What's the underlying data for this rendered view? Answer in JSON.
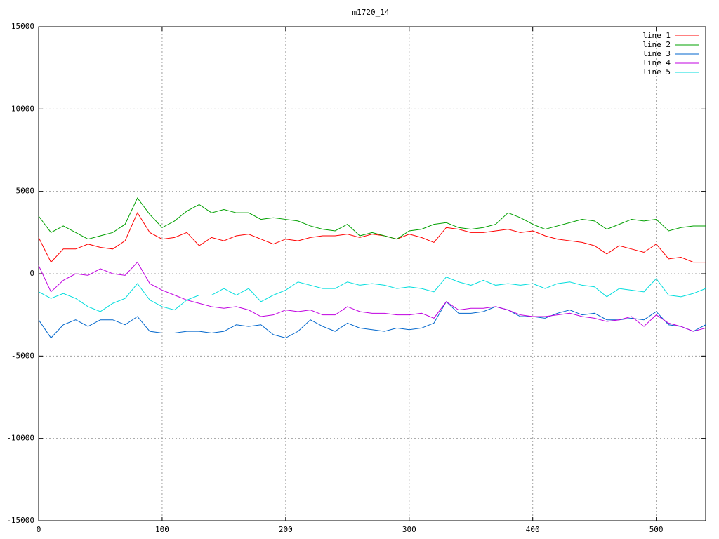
{
  "chart_data": {
    "type": "line",
    "title": "m1720_14",
    "x": [
      0,
      10,
      20,
      30,
      40,
      50,
      60,
      70,
      80,
      90,
      100,
      110,
      120,
      130,
      140,
      150,
      160,
      170,
      180,
      190,
      200,
      210,
      220,
      230,
      240,
      250,
      260,
      270,
      280,
      290,
      300,
      310,
      320,
      330,
      340,
      350,
      360,
      370,
      380,
      390,
      400,
      410,
      420,
      430,
      440,
      450,
      460,
      470,
      480,
      490,
      500,
      510,
      520,
      530,
      540
    ],
    "series": [
      {
        "name": "line 1",
        "color": "#ff0000",
        "values": [
          2200,
          700,
          1500,
          1500,
          1800,
          1600,
          1500,
          2000,
          3700,
          2500,
          2100,
          2200,
          2500,
          1700,
          2200,
          2000,
          2300,
          2400,
          2100,
          1800,
          2100,
          2000,
          2200,
          2300,
          2300,
          2400,
          2200,
          2400,
          2300,
          2100,
          2400,
          2200,
          1900,
          2800,
          2700,
          2500,
          2500,
          2600,
          2700,
          2500,
          2600,
          2300,
          2100,
          2000,
          1900,
          1700,
          1200,
          1700,
          1500,
          1300,
          1800,
          900,
          1000,
          700,
          700
        ]
      },
      {
        "name": "line 2",
        "color": "#00a000",
        "values": [
          3500,
          2500,
          2900,
          2500,
          2100,
          2300,
          2500,
          3000,
          4600,
          3600,
          2800,
          3200,
          3800,
          4200,
          3700,
          3900,
          3700,
          3700,
          3300,
          3400,
          3300,
          3200,
          2900,
          2700,
          2600,
          3000,
          2300,
          2500,
          2300,
          2100,
          2600,
          2700,
          3000,
          3100,
          2800,
          2700,
          2800,
          3000,
          3700,
          3400,
          3000,
          2700,
          2900,
          3100,
          3300,
          3200,
          2700,
          3000,
          3300,
          3200,
          3300,
          2600,
          2800,
          2900,
          2900
        ]
      },
      {
        "name": "line 3",
        "color": "#0066cc",
        "values": [
          -2800,
          -3900,
          -3100,
          -2800,
          -3200,
          -2800,
          -2800,
          -3100,
          -2600,
          -3500,
          -3600,
          -3600,
          -3500,
          -3500,
          -3600,
          -3500,
          -3100,
          -3200,
          -3100,
          -3700,
          -3900,
          -3500,
          -2800,
          -3200,
          -3500,
          -3000,
          -3300,
          -3400,
          -3500,
          -3300,
          -3400,
          -3300,
          -3000,
          -1700,
          -2400,
          -2400,
          -2300,
          -2000,
          -2200,
          -2600,
          -2600,
          -2700,
          -2400,
          -2200,
          -2500,
          -2400,
          -2800,
          -2800,
          -2700,
          -2800,
          -2300,
          -3100,
          -3200,
          -3500,
          -3100
        ]
      },
      {
        "name": "line 4",
        "color": "#c000e0",
        "values": [
          500,
          -1100,
          -400,
          0,
          -100,
          300,
          0,
          -100,
          700,
          -600,
          -1000,
          -1300,
          -1600,
          -1800,
          -2000,
          -2100,
          -2000,
          -2200,
          -2600,
          -2500,
          -2200,
          -2300,
          -2200,
          -2500,
          -2500,
          -2000,
          -2300,
          -2400,
          -2400,
          -2500,
          -2500,
          -2400,
          -2700,
          -1700,
          -2200,
          -2100,
          -2100,
          -2000,
          -2200,
          -2500,
          -2600,
          -2600,
          -2500,
          -2400,
          -2600,
          -2700,
          -2900,
          -2800,
          -2600,
          -3200,
          -2500,
          -3000,
          -3200,
          -3500,
          -3300
        ]
      },
      {
        "name": "line 5",
        "color": "#00dddd",
        "values": [
          -1100,
          -1500,
          -1200,
          -1500,
          -2000,
          -2300,
          -1800,
          -1500,
          -600,
          -1600,
          -2000,
          -2200,
          -1600,
          -1300,
          -1300,
          -900,
          -1300,
          -900,
          -1700,
          -1300,
          -1000,
          -500,
          -700,
          -900,
          -900,
          -500,
          -700,
          -600,
          -700,
          -900,
          -800,
          -900,
          -1100,
          -200,
          -500,
          -700,
          -400,
          -700,
          -600,
          -700,
          -600,
          -900,
          -600,
          -500,
          -700,
          -800,
          -1400,
          -900,
          -1000,
          -1100,
          -300,
          -1300,
          -1400,
          -1200,
          -900
        ]
      }
    ],
    "xlim": [
      0,
      540
    ],
    "ylim": [
      -15000,
      15000
    ],
    "xticks": [
      0,
      100,
      200,
      300,
      400,
      500
    ],
    "yticks": [
      -15000,
      -10000,
      -5000,
      0,
      5000,
      10000,
      15000
    ],
    "grid": true,
    "legend": "top-right"
  }
}
